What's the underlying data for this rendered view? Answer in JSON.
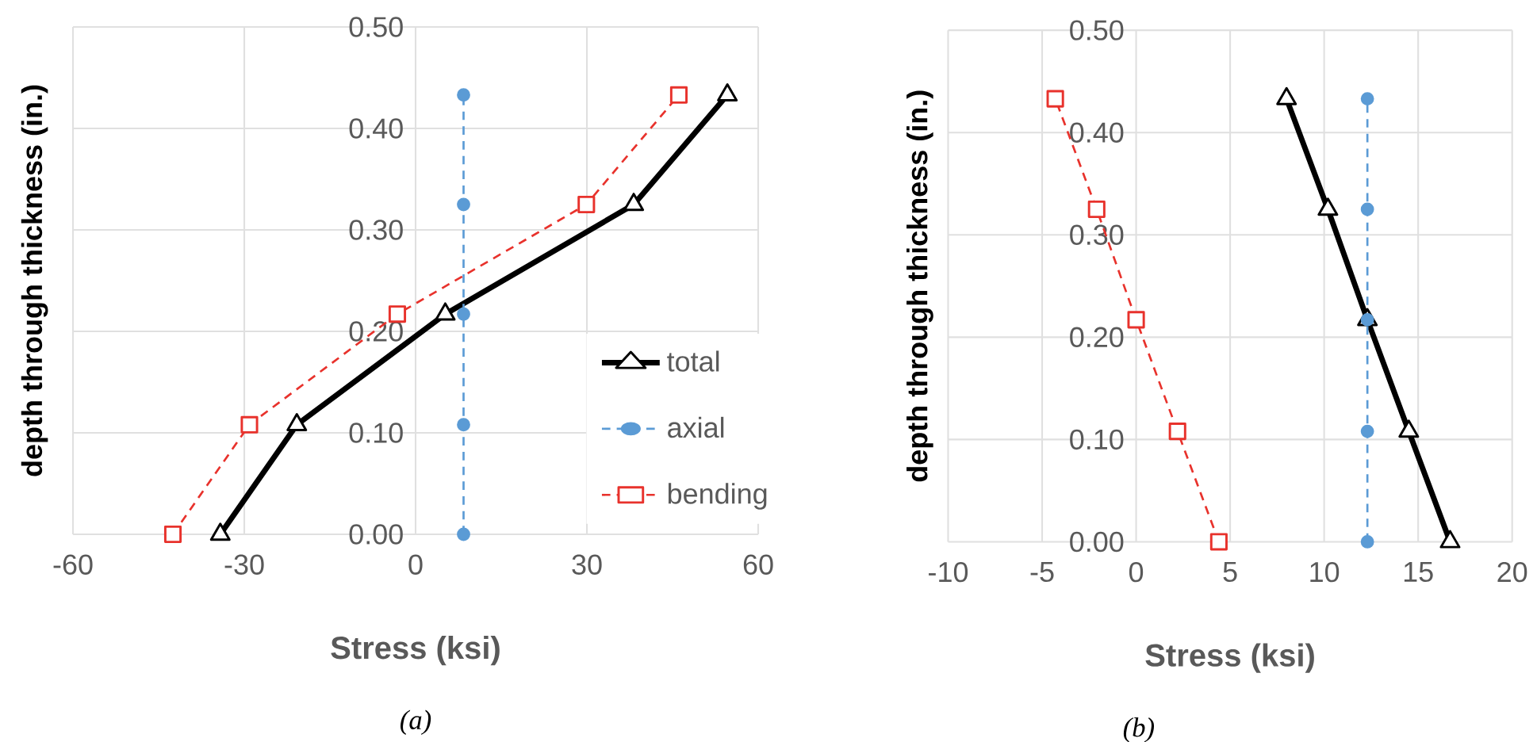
{
  "chart_data": [
    {
      "type": "line",
      "xlabel": "Stress (ksi)",
      "ylabel": "depth through thickness (in.)",
      "annotations": [
        "(a)"
      ],
      "xlim": [
        -60,
        60
      ],
      "xticks": [
        -60,
        -30,
        0,
        30,
        60
      ],
      "ylim": [
        0,
        0.5
      ],
      "yticks": [
        {
          "value": 0,
          "label": "0.00"
        },
        {
          "value": 0.1,
          "label": "0.10"
        },
        {
          "value": 0.2,
          "label": "0.20"
        },
        {
          "value": 0.3,
          "label": "0.30"
        },
        {
          "value": 0.4,
          "label": "0.40"
        },
        {
          "value": 0.5,
          "label": "0.50"
        }
      ],
      "grid": true,
      "legend": "bottom right",
      "series": [
        {
          "name": "total",
          "color": "#000000",
          "marker": "triangle",
          "line_style": "solid",
          "x": [
            -34.2,
            -20.8,
            5.2,
            38.2,
            54.6
          ],
          "values": [
            0,
            0.108,
            0.217,
            0.325,
            0.433
          ]
        },
        {
          "name": "axial",
          "color": "#5b9bd5",
          "marker": "circle",
          "line_style": "dashed",
          "x": [
            8.4,
            8.4,
            8.4,
            8.4,
            8.4
          ],
          "values": [
            0,
            0.108,
            0.217,
            0.325,
            0.433
          ]
        },
        {
          "name": "bending",
          "color": "#e8322c",
          "marker": "square",
          "line_style": "dashed",
          "x": [
            -42.5,
            -29.1,
            -3.2,
            29.9,
            46.1
          ],
          "values": [
            0,
            0.108,
            0.217,
            0.325,
            0.433
          ]
        }
      ]
    },
    {
      "type": "line",
      "xlabel": "Stress (ksi)",
      "ylabel": "depth through thickness (in.)",
      "annotations": [
        "(b)"
      ],
      "xlim": [
        -10,
        20
      ],
      "xticks": [
        -10,
        -5,
        0,
        5,
        10,
        15,
        20
      ],
      "ylim": [
        0,
        0.5
      ],
      "yticks": [
        {
          "value": 0,
          "label": "0.00"
        },
        {
          "value": 0.1,
          "label": "0.10"
        },
        {
          "value": 0.2,
          "label": "0.20"
        },
        {
          "value": 0.3,
          "label": "0.30"
        },
        {
          "value": 0.4,
          "label": "0.40"
        },
        {
          "value": 0.5,
          "label": "0.50"
        }
      ],
      "grid": true,
      "series": [
        {
          "color": "#000000",
          "marker": "triangle",
          "line_style": "solid",
          "x": [
            16.7,
            14.5,
            12.3,
            10.2,
            8.0
          ],
          "values": [
            0,
            0.108,
            0.217,
            0.325,
            0.433
          ]
        },
        {
          "color": "#5b9bd5",
          "marker": "circle",
          "line_style": "dashed",
          "x": [
            12.3,
            12.3,
            12.3,
            12.3,
            12.3
          ],
          "values": [
            0,
            0.108,
            0.217,
            0.325,
            0.433
          ]
        },
        {
          "color": "#e8322c",
          "marker": "square",
          "line_style": "dashed",
          "x": [
            4.4,
            2.2,
            0.0,
            -2.1,
            -4.3
          ],
          "values": [
            0,
            0.108,
            0.217,
            0.325,
            0.433
          ]
        }
      ]
    }
  ]
}
